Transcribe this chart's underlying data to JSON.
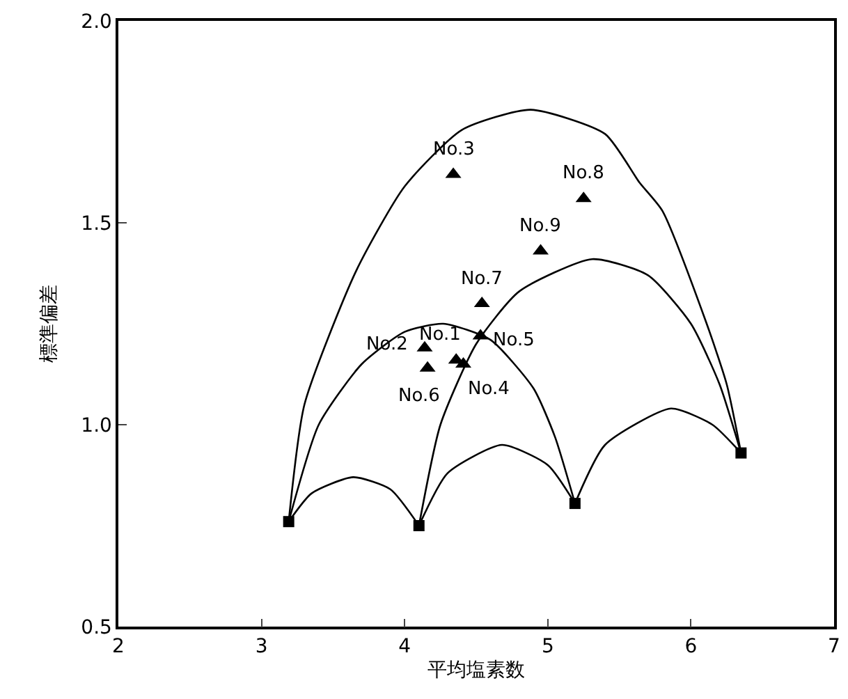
{
  "chart_data": {
    "type": "scatter",
    "xlabel": "平均塩素数",
    "ylabel": "標準偏差",
    "xlim": [
      2,
      7
    ],
    "xticks": [
      2,
      3,
      4,
      5,
      6,
      7
    ],
    "ylim": [
      0.5,
      2.0
    ],
    "yticks": [
      {
        "value": 0.5,
        "label": "0.5"
      },
      {
        "value": 1.0,
        "label": "1.0"
      },
      {
        "value": 1.5,
        "label": "1.5"
      },
      {
        "value": 2.0,
        "label": "2.0"
      }
    ],
    "series": [
      {
        "type": "line",
        "color": "#000000",
        "marker": "none",
        "x": [
          3.19,
          3.3,
          3.66,
          4.0,
          4.4,
          4.88,
          5.4,
          5.64,
          5.8,
          6.1,
          6.25,
          6.35
        ],
        "values": [
          0.76,
          1.05,
          1.38,
          1.59,
          1.73,
          1.78,
          1.72,
          1.6,
          1.53,
          1.26,
          1.1,
          0.93
        ]
      },
      {
        "type": "line",
        "color": "#000000",
        "marker": "none",
        "x": [
          3.19,
          3.4,
          3.7,
          4.0,
          4.27,
          4.6,
          4.9,
          5.05,
          5.19
        ],
        "values": [
          0.76,
          1.0,
          1.15,
          1.23,
          1.25,
          1.21,
          1.09,
          0.97,
          0.805
        ]
      },
      {
        "type": "line",
        "color": "#000000",
        "marker": "none",
        "x": [
          4.1,
          4.25,
          4.5,
          4.8,
          5.31,
          5.7,
          6.0,
          6.2,
          6.35
        ],
        "values": [
          0.75,
          1.0,
          1.2,
          1.33,
          1.41,
          1.37,
          1.25,
          1.1,
          0.93
        ]
      },
      {
        "type": "line",
        "color": "#000000",
        "marker": "none",
        "x": [
          3.19,
          3.35,
          3.64,
          3.9,
          4.1
        ],
        "values": [
          0.76,
          0.83,
          0.87,
          0.84,
          0.75
        ]
      },
      {
        "type": "line",
        "color": "#000000",
        "marker": "none",
        "x": [
          4.1,
          4.3,
          4.68,
          5.0,
          5.19
        ],
        "values": [
          0.75,
          0.88,
          0.95,
          0.9,
          0.805
        ]
      },
      {
        "type": "line",
        "color": "#000000",
        "marker": "none",
        "x": [
          5.19,
          5.4,
          5.86,
          6.15,
          6.35
        ],
        "values": [
          0.805,
          0.95,
          1.04,
          1.0,
          0.93
        ]
      },
      {
        "type": "scatter",
        "color": "#000000",
        "marker": "square",
        "x": [
          3.19,
          4.1,
          5.19,
          6.35
        ],
        "values": [
          0.76,
          0.75,
          0.805,
          0.93
        ]
      },
      {
        "color": "#000000",
        "marker": "triangle",
        "x": [
          4.36,
          4.14,
          4.34,
          4.41,
          4.53,
          4.16,
          4.54,
          5.25,
          4.95
        ],
        "values": [
          1.16,
          1.19,
          1.62,
          1.15,
          1.22,
          1.14,
          1.3,
          1.56,
          1.43
        ]
      }
    ],
    "annotations": [
      {
        "text": "No.1",
        "x": 4.36,
        "y": 1.16
      },
      {
        "text": "No.2",
        "x": 4.14,
        "y": 1.19
      },
      {
        "text": "No.3",
        "x": 4.34,
        "y": 1.62
      },
      {
        "text": "No.4",
        "x": 4.41,
        "y": 1.15
      },
      {
        "text": "No.5",
        "x": 4.53,
        "y": 1.22
      },
      {
        "text": "No.6",
        "x": 4.16,
        "y": 1.14
      },
      {
        "text": "No.7",
        "x": 4.54,
        "y": 1.3
      },
      {
        "text": "No.8",
        "x": 5.25,
        "y": 1.56
      },
      {
        "text": "No.9",
        "x": 4.95,
        "y": 1.43
      }
    ]
  }
}
